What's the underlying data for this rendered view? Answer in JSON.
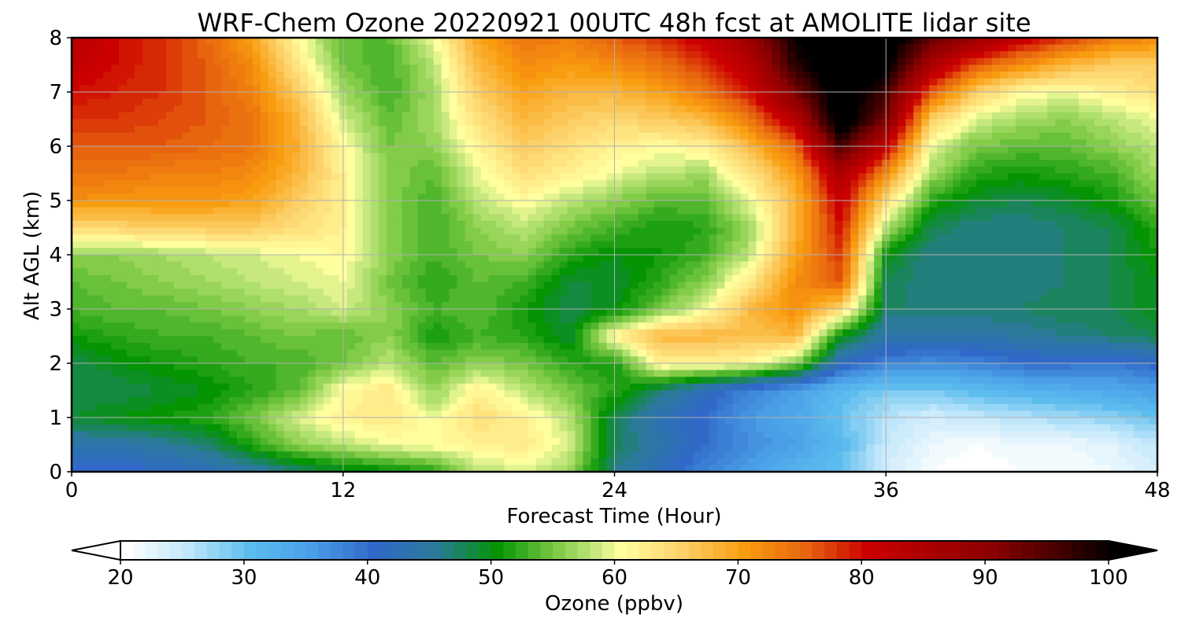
{
  "chart_data": {
    "type": "heatmap",
    "title": "WRF-Chem Ozone  20220921 00UTC 48h fcst at AMOLITE lidar site",
    "xlabel": "Forecast Time (Hour)",
    "ylabel": "Alt AGL (km)",
    "xlim": [
      0,
      48
    ],
    "ylim": [
      0,
      8
    ],
    "xticks": [
      "0",
      "12",
      "24",
      "36",
      "48"
    ],
    "yticks": [
      "0",
      "1",
      "2",
      "3",
      "4",
      "5",
      "6",
      "7",
      "8"
    ],
    "grid": true,
    "x_hours": [
      0,
      2,
      4,
      6,
      8,
      10,
      12,
      14,
      16,
      18,
      20,
      22,
      24,
      26,
      28,
      30,
      32,
      34,
      36,
      38,
      40,
      42,
      44,
      46,
      48
    ],
    "z_km": [
      0,
      0.5,
      1,
      1.5,
      2,
      2.5,
      3,
      3.5,
      4,
      4.5,
      5,
      5.5,
      6,
      6.5,
      7,
      7.5,
      8
    ],
    "ozone_ppbv": [
      [
        40,
        40,
        41,
        42,
        44,
        47,
        49,
        50,
        52,
        58,
        59,
        57,
        46,
        42,
        38,
        35,
        32,
        30,
        24,
        21,
        20,
        21,
        21,
        22,
        24
      ],
      [
        44,
        44,
        45,
        47,
        52,
        56,
        58,
        60,
        61,
        62,
        63,
        59,
        48,
        44,
        40,
        37,
        35,
        31,
        25,
        22,
        21,
        22,
        22,
        23,
        25
      ],
      [
        49,
        50,
        51,
        52,
        55,
        59,
        62,
        63,
        60,
        64,
        62,
        58,
        48,
        43,
        40,
        36,
        34,
        30,
        26,
        24,
        25,
        26,
        27,
        28,
        30
      ],
      [
        48,
        48,
        49,
        50,
        52,
        54,
        61,
        63,
        56,
        62,
        58,
        55,
        52,
        47,
        42,
        38,
        35,
        31,
        29,
        29,
        31,
        32,
        33,
        34,
        35
      ],
      [
        48,
        50,
        51,
        52,
        53,
        53,
        55,
        58,
        54,
        56,
        55,
        52,
        51,
        62,
        62,
        61,
        56,
        42,
        38,
        37,
        38,
        40,
        40,
        39,
        41
      ],
      [
        51,
        52,
        53,
        53,
        54,
        55,
        54,
        56,
        51,
        53,
        52,
        49,
        62,
        68,
        68,
        67,
        68,
        50,
        44,
        44,
        44,
        45,
        46,
        47,
        48
      ],
      [
        53,
        54,
        54,
        55,
        56,
        57,
        59,
        56,
        53,
        54,
        51,
        48,
        50,
        55,
        60,
        68,
        72,
        65,
        47,
        47,
        47,
        47,
        48,
        48,
        50
      ],
      [
        54,
        55,
        56,
        57,
        58,
        59,
        60,
        55,
        52,
        54,
        53,
        49,
        49,
        52,
        56,
        63,
        72,
        76,
        48,
        46,
        46,
        46,
        47,
        48,
        50
      ],
      [
        56,
        56,
        57,
        58,
        59,
        60,
        61,
        56,
        53,
        55,
        56,
        52,
        50,
        51,
        53,
        58,
        70,
        78,
        50,
        46,
        46,
        46,
        47,
        48,
        51
      ],
      [
        64,
        65,
        66,
        66,
        66,
        64,
        62,
        56,
        53,
        56,
        58,
        55,
        53,
        51,
        52,
        57,
        68,
        80,
        58,
        48,
        46,
        46,
        47,
        48,
        52
      ],
      [
        72,
        71,
        71,
        71,
        70,
        66,
        62,
        56,
        53,
        58,
        61,
        58,
        56,
        54,
        54,
        60,
        68,
        82,
        64,
        52,
        49,
        48,
        49,
        51,
        55
      ],
      [
        74,
        74,
        73,
        73,
        72,
        68,
        62,
        56,
        54,
        60,
        64,
        62,
        60,
        58,
        57,
        64,
        70,
        86,
        72,
        57,
        52,
        51,
        52,
        53,
        57
      ],
      [
        76,
        76,
        76,
        75,
        74,
        69,
        61,
        55,
        56,
        62,
        66,
        64,
        62,
        61,
        62,
        68,
        75,
        96,
        82,
        60,
        55,
        54,
        54,
        56,
        58
      ],
      [
        78,
        78,
        77,
        76,
        74,
        68,
        59,
        54,
        57,
        64,
        68,
        66,
        65,
        66,
        68,
        74,
        84,
        104,
        92,
        66,
        59,
        57,
        56,
        58,
        60
      ],
      [
        80,
        79,
        78,
        76,
        73,
        66,
        57,
        53,
        57,
        66,
        70,
        68,
        68,
        70,
        74,
        80,
        92,
        104,
        96,
        76,
        66,
        61,
        60,
        62,
        64
      ],
      [
        82,
        80,
        78,
        76,
        72,
        63,
        55,
        53,
        58,
        68,
        72,
        71,
        72,
        74,
        78,
        84,
        98,
        104,
        102,
        86,
        76,
        72,
        68,
        66,
        66
      ],
      [
        84,
        80,
        78,
        75,
        70,
        61,
        54,
        54,
        60,
        70,
        74,
        73,
        76,
        78,
        82,
        88,
        100,
        104,
        104,
        94,
        88,
        82,
        78,
        74,
        72
      ]
    ],
    "colorbar": {
      "label": "Ozone  (ppbv)",
      "ticks": [
        "20",
        "30",
        "40",
        "50",
        "60",
        "70",
        "80",
        "90",
        "100"
      ],
      "range": [
        20,
        100
      ],
      "step": 1,
      "extend": "both",
      "orientation": "horizontal",
      "placement": "bottom"
    },
    "colormap_stops": [
      {
        "v": 20,
        "c": "#ffffff"
      },
      {
        "v": 25,
        "c": "#bfe6fa"
      },
      {
        "v": 30,
        "c": "#5cbcee"
      },
      {
        "v": 35,
        "c": "#4a9ee6"
      },
      {
        "v": 40,
        "c": "#3069c9"
      },
      {
        "v": 45,
        "c": "#2b7a9a"
      },
      {
        "v": 50,
        "c": "#049404"
      },
      {
        "v": 55,
        "c": "#82cc48"
      },
      {
        "v": 58,
        "c": "#c6e87e"
      },
      {
        "v": 60,
        "c": "#ffffa0"
      },
      {
        "v": 65,
        "c": "#fdd169"
      },
      {
        "v": 70,
        "c": "#f99d10"
      },
      {
        "v": 75,
        "c": "#e8650f"
      },
      {
        "v": 80,
        "c": "#cc0000"
      },
      {
        "v": 90,
        "c": "#8b0000"
      },
      {
        "v": 95,
        "c": "#4b0000"
      },
      {
        "v": 100,
        "c": "#000000"
      }
    ],
    "colors": {
      "grid": "#b0b0b0",
      "frame": "#000000",
      "under": "#ffffff",
      "over": "#000000"
    }
  }
}
